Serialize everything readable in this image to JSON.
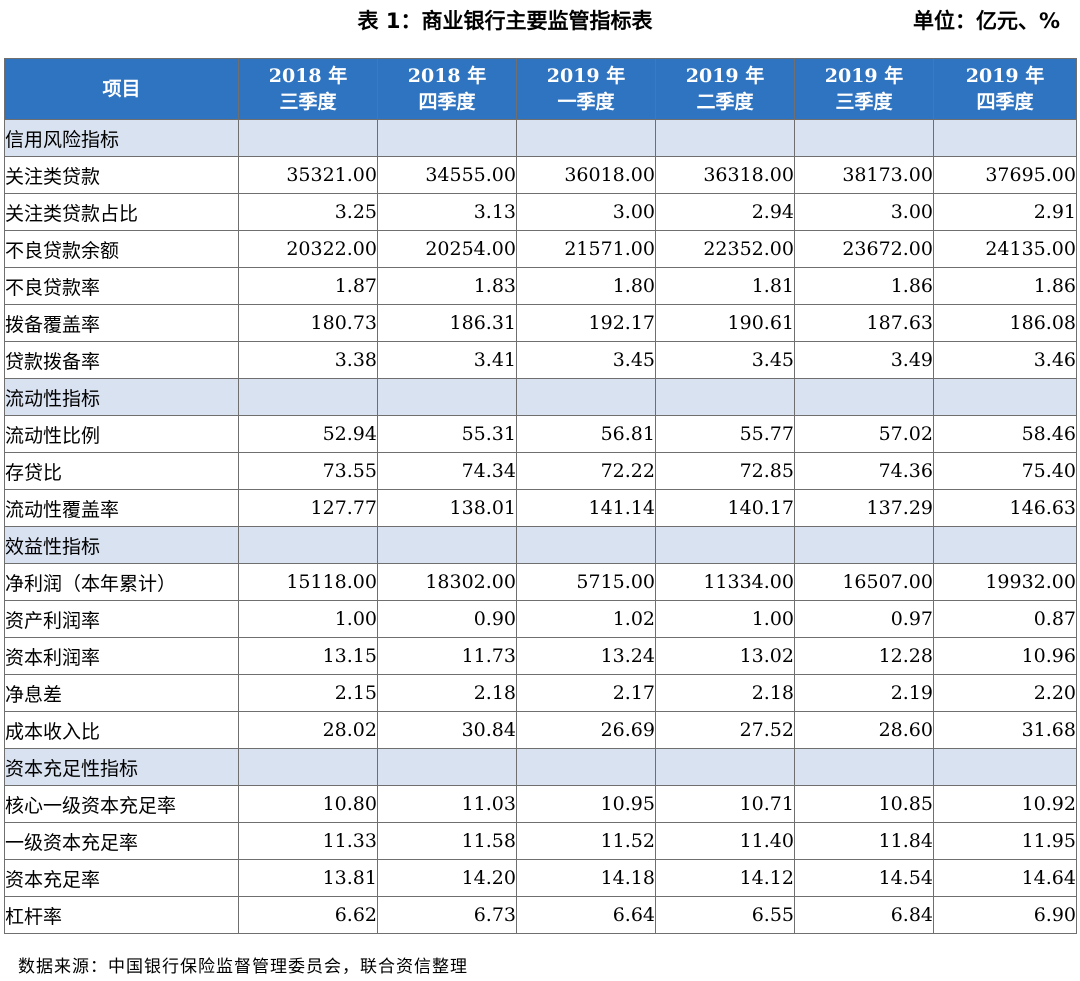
{
  "title": "表 1：商业银行主要监管指标表",
  "unit": "单位：亿元、%",
  "header": {
    "item": "项目",
    "columns": [
      {
        "year": "2018 年",
        "quarter": "三季度"
      },
      {
        "year": "2018 年",
        "quarter": "四季度"
      },
      {
        "year": "2019 年",
        "quarter": "一季度"
      },
      {
        "year": "2019 年",
        "quarter": "二季度"
      },
      {
        "year": "2019 年",
        "quarter": "三季度"
      },
      {
        "year": "2019 年",
        "quarter": "四季度"
      }
    ]
  },
  "rows": [
    {
      "type": "section",
      "label": "信用风险指标"
    },
    {
      "type": "data",
      "label": "关注类贷款",
      "values": [
        "35321.00",
        "34555.00",
        "36018.00",
        "36318.00",
        "38173.00",
        "37695.00"
      ]
    },
    {
      "type": "data",
      "label": "关注类贷款占比",
      "values": [
        "3.25",
        "3.13",
        "3.00",
        "2.94",
        "3.00",
        "2.91"
      ]
    },
    {
      "type": "data",
      "label": "不良贷款余额",
      "values": [
        "20322.00",
        "20254.00",
        "21571.00",
        "22352.00",
        "23672.00",
        "24135.00"
      ]
    },
    {
      "type": "data",
      "label": "不良贷款率",
      "values": [
        "1.87",
        "1.83",
        "1.80",
        "1.81",
        "1.86",
        "1.86"
      ]
    },
    {
      "type": "data",
      "label": "拨备覆盖率",
      "values": [
        "180.73",
        "186.31",
        "192.17",
        "190.61",
        "187.63",
        "186.08"
      ]
    },
    {
      "type": "data",
      "label": "贷款拨备率",
      "values": [
        "3.38",
        "3.41",
        "3.45",
        "3.45",
        "3.49",
        "3.46"
      ]
    },
    {
      "type": "section",
      "label": "流动性指标"
    },
    {
      "type": "data",
      "label": "流动性比例",
      "values": [
        "52.94",
        "55.31",
        "56.81",
        "55.77",
        "57.02",
        "58.46"
      ]
    },
    {
      "type": "data",
      "label": "存贷比",
      "values": [
        "73.55",
        "74.34",
        "72.22",
        "72.85",
        "74.36",
        "75.40"
      ]
    },
    {
      "type": "data",
      "label": "流动性覆盖率",
      "values": [
        "127.77",
        "138.01",
        "141.14",
        "140.17",
        "137.29",
        "146.63"
      ]
    },
    {
      "type": "section",
      "label": "效益性指标"
    },
    {
      "type": "data",
      "label": "净利润（本年累计）",
      "values": [
        "15118.00",
        "18302.00",
        "5715.00",
        "11334.00",
        "16507.00",
        "19932.00"
      ]
    },
    {
      "type": "data",
      "label": "资产利润率",
      "values": [
        "1.00",
        "0.90",
        "1.02",
        "1.00",
        "0.97",
        "0.87"
      ]
    },
    {
      "type": "data",
      "label": "资本利润率",
      "values": [
        "13.15",
        "11.73",
        "13.24",
        "13.02",
        "12.28",
        "10.96"
      ]
    },
    {
      "type": "data",
      "label": "净息差",
      "values": [
        "2.15",
        "2.18",
        "2.17",
        "2.18",
        "2.19",
        "2.20"
      ]
    },
    {
      "type": "data",
      "label": "成本收入比",
      "values": [
        "28.02",
        "30.84",
        "26.69",
        "27.52",
        "28.60",
        "31.68"
      ]
    },
    {
      "type": "section",
      "label": "资本充足性指标"
    },
    {
      "type": "data",
      "label": "核心一级资本充足率",
      "values": [
        "10.80",
        "11.03",
        "10.95",
        "10.71",
        "10.85",
        "10.92"
      ]
    },
    {
      "type": "data",
      "label": "一级资本充足率",
      "values": [
        "11.33",
        "11.58",
        "11.52",
        "11.40",
        "11.84",
        "11.95"
      ]
    },
    {
      "type": "data",
      "label": "资本充足率",
      "values": [
        "13.81",
        "14.20",
        "14.18",
        "14.12",
        "14.54",
        "14.64"
      ]
    },
    {
      "type": "data",
      "label": "杠杆率",
      "values": [
        "6.62",
        "6.73",
        "6.64",
        "6.55",
        "6.84",
        "6.90"
      ]
    }
  ],
  "footer": "数据来源：中国银行保险监督管理委员会，联合资信整理",
  "colors": {
    "header_bg": "#2f74c0",
    "section_bg": "#d9e2f1",
    "header_text": "#ffffff"
  }
}
